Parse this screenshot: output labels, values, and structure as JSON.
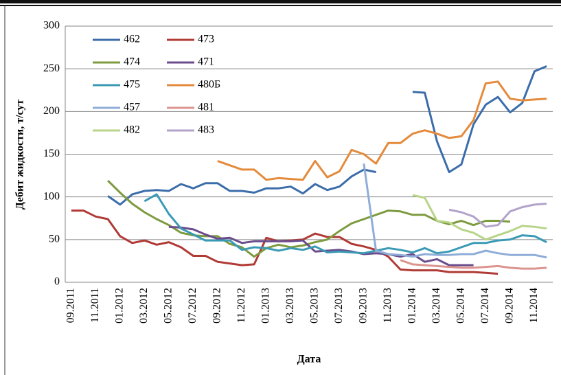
{
  "chart_data": {
    "type": "line",
    "y_label": "Дебит жидкости, т/сут",
    "x_label": "Дата",
    "categories": [
      "09.2011",
      null,
      "11.2011",
      null,
      "01.2012",
      null,
      "03.2012",
      null,
      "05.2012",
      null,
      "07.2012",
      null,
      "09.2012",
      null,
      "11.2012",
      null,
      "01.2013",
      null,
      "03.2013",
      null,
      "05.2013",
      null,
      "07.2013",
      null,
      "09.2013",
      null,
      "11.2013",
      null,
      "01.2014",
      null,
      "03.2014",
      null,
      "05.2014",
      null,
      "07.2014",
      null,
      "09.2014",
      null,
      "11.2014",
      null
    ],
    "ylim": [
      0,
      300
    ],
    "yticks": [
      0,
      50,
      100,
      150,
      200,
      250,
      300
    ],
    "grid": true,
    "legend": "top-left",
    "series": [
      {
        "name": "462",
        "color": "#3b6daa",
        "values": [
          null,
          null,
          null,
          101,
          91,
          103,
          107,
          108,
          107,
          115,
          110,
          116,
          116,
          107,
          107,
          105,
          110,
          110,
          112,
          104,
          115,
          108,
          112,
          124,
          132,
          129,
          null,
          null,
          223,
          222,
          165,
          129,
          138,
          185,
          208,
          217,
          199,
          210,
          247,
          253
        ]
      },
      {
        "name": "473",
        "color": "#b03a35",
        "values": [
          84,
          84,
          77,
          74,
          54,
          46,
          49,
          44,
          47,
          41,
          31,
          31,
          24,
          22,
          20,
          21,
          52,
          48,
          49,
          50,
          57,
          53,
          53,
          45,
          42,
          38,
          30,
          15,
          14,
          14,
          14,
          12,
          12,
          12,
          11,
          10,
          null,
          null,
          null,
          null
        ]
      },
      {
        "name": "474",
        "color": "#7d9b3f",
        "values": [
          null,
          null,
          null,
          119,
          105,
          92,
          82,
          74,
          67,
          58,
          55,
          54,
          54,
          45,
          41,
          30,
          40,
          44,
          41,
          43,
          47,
          50,
          60,
          69,
          74,
          79,
          84,
          83,
          79,
          79,
          72,
          68,
          72,
          67,
          72,
          72,
          71,
          null,
          null,
          null
        ]
      },
      {
        "name": "471",
        "color": "#6a4b8b",
        "values": [
          null,
          null,
          null,
          null,
          null,
          null,
          null,
          null,
          65,
          64,
          62,
          56,
          51,
          52,
          46,
          48,
          48,
          48,
          48,
          49,
          36,
          37,
          38,
          36,
          33,
          34,
          33,
          30,
          33,
          24,
          27,
          20,
          20,
          20,
          null,
          null,
          null,
          null,
          null,
          null
        ]
      },
      {
        "name": "475",
        "color": "#3a9ab5",
        "values": [
          null,
          null,
          null,
          null,
          null,
          null,
          95,
          103,
          80,
          63,
          56,
          49,
          49,
          49,
          38,
          41,
          40,
          37,
          40,
          38,
          42,
          35,
          36,
          35,
          34,
          37,
          40,
          38,
          35,
          40,
          34,
          36,
          41,
          46,
          46,
          49,
          50,
          55,
          54,
          47
        ]
      },
      {
        "name": "480Б",
        "color": "#e48a3b",
        "values": [
          null,
          null,
          null,
          null,
          null,
          null,
          null,
          null,
          null,
          null,
          null,
          null,
          142,
          137,
          132,
          132,
          120,
          122,
          121,
          120,
          142,
          123,
          130,
          155,
          150,
          139,
          163,
          163,
          174,
          178,
          174,
          169,
          171,
          190,
          233,
          235,
          215,
          213,
          214,
          215
        ]
      },
      {
        "name": "457",
        "color": "#8fadd8",
        "values": [
          null,
          null,
          null,
          null,
          null,
          null,
          null,
          null,
          null,
          null,
          null,
          null,
          null,
          null,
          null,
          null,
          null,
          null,
          null,
          null,
          null,
          null,
          null,
          null,
          139,
          37,
          33,
          32,
          30,
          33,
          32,
          32,
          33,
          33,
          37,
          34,
          32,
          32,
          32,
          29
        ]
      },
      {
        "name": "481",
        "color": "#dc948f",
        "values": [
          null,
          null,
          null,
          null,
          null,
          null,
          null,
          null,
          null,
          null,
          null,
          null,
          null,
          null,
          null,
          null,
          null,
          null,
          null,
          null,
          null,
          null,
          null,
          null,
          null,
          null,
          null,
          26,
          21,
          20,
          19,
          18,
          17,
          17,
          18,
          19,
          17,
          16,
          16,
          17
        ]
      },
      {
        "name": "482",
        "color": "#b8d489",
        "values": [
          null,
          null,
          null,
          null,
          null,
          null,
          null,
          null,
          null,
          null,
          null,
          null,
          null,
          null,
          null,
          null,
          null,
          null,
          null,
          null,
          null,
          null,
          null,
          null,
          null,
          null,
          null,
          null,
          102,
          99,
          72,
          70,
          62,
          58,
          50,
          55,
          60,
          66,
          65,
          63
        ]
      },
      {
        "name": "483",
        "color": "#b2a3ca",
        "values": [
          null,
          null,
          null,
          null,
          null,
          null,
          null,
          null,
          null,
          null,
          null,
          null,
          null,
          null,
          null,
          null,
          null,
          null,
          null,
          null,
          null,
          null,
          null,
          null,
          null,
          null,
          null,
          null,
          null,
          null,
          null,
          85,
          82,
          77,
          65,
          67,
          83,
          88,
          91,
          92
        ]
      }
    ]
  }
}
